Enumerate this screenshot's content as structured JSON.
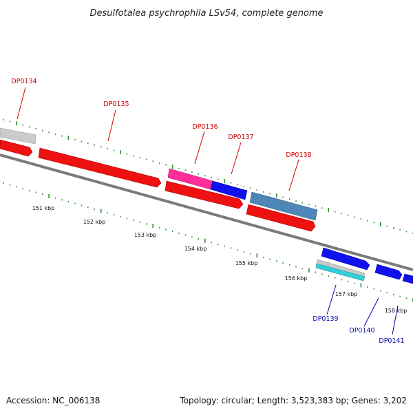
{
  "title": "Desulfotalea psychrophila LSv54, complete genome",
  "footer": {
    "accession": "Accession: NC_006138",
    "summary": "Topology: circular; Length: 3,523,383 bp; Genes: 3,202"
  },
  "scale": {
    "ticks": [
      "151 kbp",
      "152 kbp",
      "153 kbp",
      "154 kbp",
      "155 kbp",
      "156 kbp",
      "157 kbp",
      "158 kbp"
    ]
  },
  "colors": {
    "forward_label": "#cc0000",
    "reverse_label": "#0000aa",
    "tick_marks": "#2e8b2e",
    "backbone": "#808080",
    "gene_red": "#ee1111",
    "gene_pink": "#ff2f9a",
    "gene_blue": "#1111ee",
    "gene_steel": "#4f86b8",
    "gene_grey": "#cccccc",
    "gene_cyan": "#2fd0d8"
  },
  "genes": [
    {
      "label": "DP0134",
      "strand": "forward"
    },
    {
      "label": "DP0135",
      "strand": "forward"
    },
    {
      "label": "DP0136",
      "strand": "forward"
    },
    {
      "label": "DP0137",
      "strand": "forward"
    },
    {
      "label": "DP0138",
      "strand": "forward"
    },
    {
      "label": "DP0139",
      "strand": "reverse"
    },
    {
      "label": "DP0140",
      "strand": "reverse"
    },
    {
      "label": "DP0141",
      "strand": "reverse"
    }
  ]
}
